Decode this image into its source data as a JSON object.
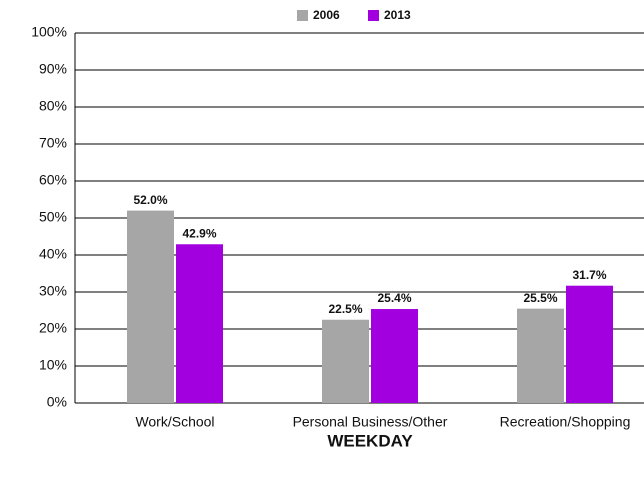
{
  "chart_data": {
    "type": "bar",
    "categories": [
      "Work/School",
      "Personal Business/Other",
      "Recreation/Shopping"
    ],
    "series": [
      {
        "name": "2006",
        "color": "#a6a6a6",
        "values": [
          52.0,
          22.5,
          25.5
        ],
        "value_labels": [
          "52.0%",
          "22.5%",
          "25.5%"
        ]
      },
      {
        "name": "2013",
        "color": "#a300e0",
        "values": [
          42.9,
          25.4,
          31.7
        ],
        "value_labels": [
          "42.9%",
          "25.4%",
          "31.7%"
        ]
      }
    ],
    "x_label": "WEEKDAY",
    "ylim": [
      0,
      100
    ],
    "yticks": [
      {
        "value": 0,
        "label": "0%"
      },
      {
        "value": 10,
        "label": "10%"
      },
      {
        "value": 20,
        "label": "20%"
      },
      {
        "value": 30,
        "label": "30%"
      },
      {
        "value": 40,
        "label": "40%"
      },
      {
        "value": 50,
        "label": "50%"
      },
      {
        "value": 60,
        "label": "60%"
      },
      {
        "value": 70,
        "label": "70%"
      },
      {
        "value": 80,
        "label": "80%"
      },
      {
        "value": 90,
        "label": "90%"
      },
      {
        "value": 100,
        "label": "100%"
      }
    ],
    "grid": true,
    "legend": "top"
  }
}
